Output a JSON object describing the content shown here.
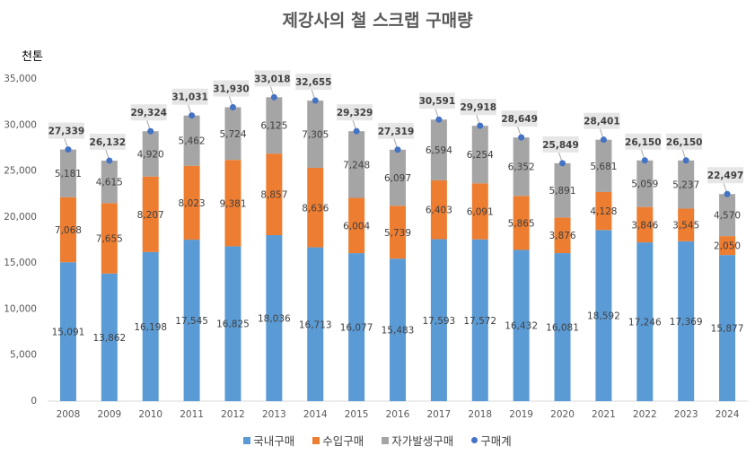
{
  "chart_data": {
    "type": "bar",
    "stacked": true,
    "title": "제강사의 철 스크랩 구매량",
    "ylabel": "천톤",
    "xlabel": "",
    "ylim": [
      0,
      35000
    ],
    "yticks": [
      0,
      5000,
      10000,
      15000,
      20000,
      25000,
      30000,
      35000
    ],
    "ytick_labels": [
      "0",
      "5,000",
      "10,000",
      "15,000",
      "20,000",
      "25,000",
      "30,000",
      "35,000"
    ],
    "grid": false,
    "legend_position": "bottom",
    "categories": [
      "2008",
      "2009",
      "2010",
      "2011",
      "2012",
      "2013",
      "2014",
      "2015",
      "2016",
      "2017",
      "2018",
      "2019",
      "2020",
      "2021",
      "2022",
      "2023",
      "2024"
    ],
    "series": [
      {
        "name": "국내구매",
        "color": "#5B9BD5",
        "kind": "bar",
        "values": [
          15091,
          13862,
          16198,
          17545,
          16825,
          18036,
          16713,
          16077,
          15483,
          17593,
          17572,
          16432,
          16081,
          18592,
          17246,
          17369,
          15877
        ],
        "labels": [
          "15,091",
          "13,862",
          "16,198",
          "17,545",
          "16,825",
          "18,036",
          "16,713",
          "16,077",
          "15,483",
          "17,593",
          "17,572",
          "16,432",
          "16,081",
          "18,592",
          "17,246",
          "17,369",
          "15,877"
        ]
      },
      {
        "name": "수입구매",
        "color": "#ED7D31",
        "kind": "bar",
        "values": [
          7068,
          7655,
          8207,
          8023,
          9381,
          8857,
          8636,
          6004,
          5739,
          6403,
          6091,
          5865,
          3876,
          4128,
          3846,
          3545,
          2050
        ],
        "labels": [
          "7,068",
          "7,655",
          "8,207",
          "8,023",
          "9,381",
          "8,857",
          "8,636",
          "6,004",
          "5,739",
          "6,403",
          "6,091",
          "5,865",
          "3,876",
          "4,128",
          "3,846",
          "3,545",
          "2,050"
        ]
      },
      {
        "name": "자가발생구매",
        "color": "#A5A5A5",
        "kind": "bar",
        "values": [
          5181,
          4615,
          4920,
          5462,
          5724,
          6125,
          7305,
          7248,
          6097,
          6594,
          6254,
          6352,
          5891,
          5681,
          5059,
          5237,
          4570
        ],
        "labels": [
          "5,181",
          "4,615",
          "4,920",
          "5,462",
          "5,724",
          "6,125",
          "7,305",
          "7,248",
          "6,097",
          "6,594",
          "6,254",
          "6,352",
          "5,891",
          "5,681",
          "5,059",
          "5,237",
          "4,570"
        ]
      },
      {
        "name": "구매계",
        "color": "#4472C4",
        "kind": "point",
        "values": [
          27339,
          26132,
          29324,
          31031,
          31930,
          33018,
          32655,
          29329,
          27319,
          30591,
          29918,
          28649,
          25849,
          28401,
          26150,
          26150,
          22497
        ],
        "labels": [
          "27,339",
          "26,132",
          "29,324",
          "31,031",
          "31,930",
          "33,018",
          "32,655",
          "29,329",
          "27,319",
          "30,591",
          "29,918",
          "28,649",
          "25,849",
          "28,401",
          "26,150",
          "26,150",
          "22,497"
        ]
      }
    ]
  },
  "legend": [
    {
      "label": "국내구매",
      "marker": "square",
      "color": "#5B9BD5"
    },
    {
      "label": "수입구매",
      "marker": "square",
      "color": "#ED7D31"
    },
    {
      "label": "자가발생구매",
      "marker": "square",
      "color": "#A5A5A5"
    },
    {
      "label": "구매계",
      "marker": "dot",
      "color": "#4472C4"
    }
  ]
}
